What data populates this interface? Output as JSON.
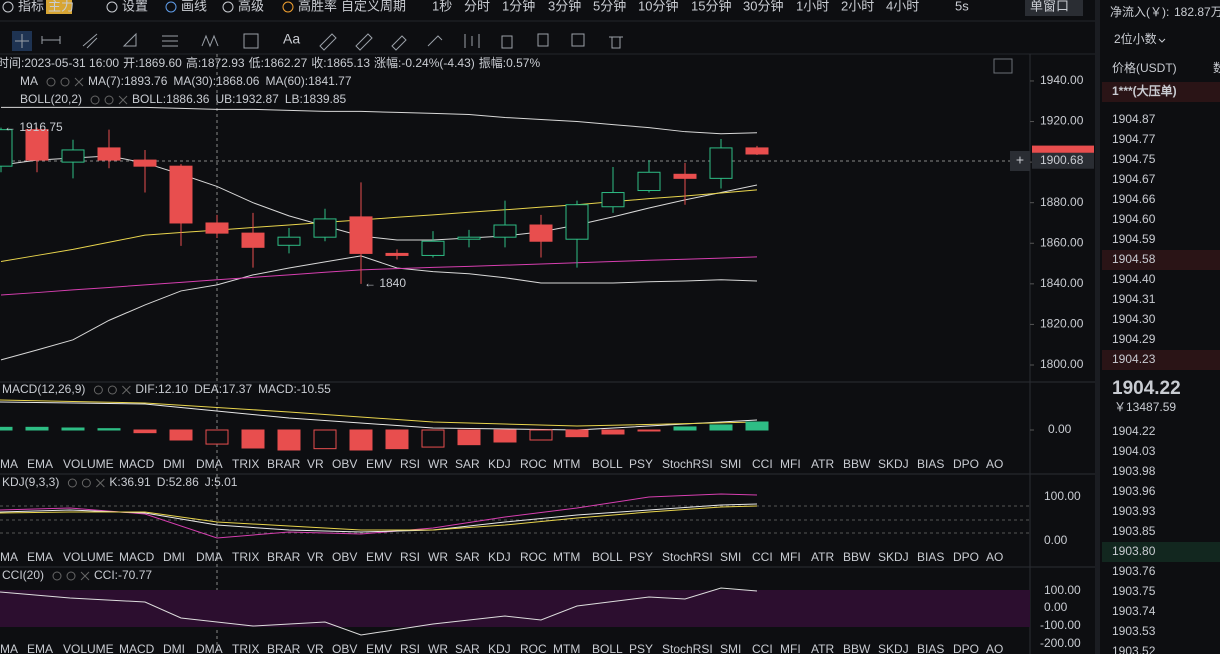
{
  "toolbar": {
    "items": [
      "指标",
      "主力",
      "设置",
      "画线",
      "高级",
      "高胜率",
      "自定义周期",
      "1秒",
      "分时",
      "1分钟",
      "3分钟",
      "5分钟",
      "10分钟",
      "15分钟",
      "30分钟",
      "1小时",
      "2小时",
      "4小时",
      "5s",
      "单窗口"
    ]
  },
  "info": {
    "time": "时间:2023-05-31 16:00",
    "fields": [
      [
        "开:",
        "1869.60"
      ],
      [
        "高:",
        "1872.93"
      ],
      [
        "低:",
        "1862.27"
      ],
      [
        "收:",
        "1865.13"
      ],
      [
        "涨幅:",
        "-0.24%(-4.43)"
      ],
      [
        "振幅:",
        "0.57%"
      ]
    ]
  },
  "ma": {
    "name": "MA",
    "items": [
      "MA(7):1893.76",
      "MA(30):1868.06",
      "MA(60):1841.77"
    ]
  },
  "boll": {
    "name": "BOLL(20,2)",
    "items": [
      "BOLL:1886.36",
      "UB:1932.87",
      "LB:1839.85"
    ]
  },
  "annotations": [
    "← 1916.75",
    "← 1840"
  ],
  "price_chart": {
    "type": "candlestick",
    "open": [
      1898,
      1916,
      1900,
      1907,
      1901,
      1898,
      1870,
      1865,
      1859,
      1863,
      1873,
      1855,
      1854,
      1862,
      1863,
      1869,
      1862,
      1878,
      1886,
      1894,
      1892,
      1907
    ],
    "high": [
      1917,
      1917,
      1911,
      1916,
      1906,
      1899,
      1874,
      1875,
      1867.5,
      1877,
      1890,
      1857,
      1866,
      1866.6,
      1881,
      1874,
      1881,
      1897.6,
      1901,
      1899.6,
      1911.4,
      1908
    ],
    "low": [
      1895,
      1895,
      1892,
      1897,
      1885,
      1858.7,
      1862.6,
      1848,
      1855,
      1861,
      1840,
      1852,
      1853,
      1858,
      1858,
      1853,
      1848,
      1875,
      1885,
      1879,
      1887,
      1903.5
    ],
    "close": [
      1916,
      1901,
      1906,
      1901,
      1898,
      1870,
      1865,
      1858,
      1863,
      1872,
      1855,
      1854,
      1861,
      1863,
      1869,
      1861,
      1879,
      1885,
      1895,
      1892,
      1907,
      1904
    ],
    "lines": [
      {
        "name": "UB",
        "color": "#d8d8d8",
        "values": [
          1927,
          1927,
          1927,
          1927,
          1927,
          1926.5,
          1926,
          1926,
          1925.5,
          1925,
          1925,
          1924.5,
          1924,
          1923.5,
          1922,
          1921,
          1920,
          1918.5,
          1917,
          1915,
          1914,
          1914.5
        ]
      },
      {
        "name": "BOLL",
        "color": "#d8d8d8",
        "values": [
          1898.6,
          1901,
          1902,
          1903,
          1899.6,
          1894,
          1888,
          1880,
          1873.5,
          1868.5,
          1863.6,
          1861.6,
          1861.6,
          1862.6,
          1863.6,
          1865.6,
          1869,
          1873,
          1877.4,
          1881.4,
          1885,
          1888.7
        ]
      },
      {
        "name": "LB",
        "color": "#d8d8d8",
        "values": [
          1802.5,
          1807.4,
          1812.4,
          1822,
          1829.6,
          1836.5,
          1839.5,
          1844.4,
          1847.8,
          1850.8,
          1853.8,
          1847.8,
          1846,
          1845,
          1843,
          1840.4,
          1840.4,
          1840.4,
          1841,
          1841.4,
          1842,
          1841.4
        ]
      },
      {
        "name": "MA(30)",
        "color": "#e8d44d",
        "values": [
          1851,
          1854,
          1857,
          1860.5,
          1864,
          1865.3,
          1866.5,
          1867.8,
          1869,
          1870.3,
          1871.5,
          1872.8,
          1874,
          1875.3,
          1876.5,
          1877.8,
          1879,
          1880.5,
          1882,
          1883.3,
          1884.8,
          1886.3
        ]
      },
      {
        "name": "MA(60)",
        "color": "#d63fb0",
        "values": [
          1834.5,
          1835.7,
          1837,
          1838.2,
          1839.5,
          1840.7,
          1842,
          1843.2,
          1844.4,
          1845.7,
          1846.9,
          1847.5,
          1848.1,
          1848.6,
          1849.2,
          1849.8,
          1850.4,
          1851,
          1851.6,
          1852.1,
          1852.7,
          1853.3
        ]
      }
    ],
    "ylim": [
      1792.6,
      1952.8
    ],
    "yticks": [
      {
        "value": 1940,
        "label": "1940.00"
      },
      {
        "value": 1920,
        "label": "1920.00"
      },
      {
        "value": 1900,
        "label": "1900.00"
      },
      {
        "value": 1880,
        "label": "1880.00"
      },
      {
        "value": 1860,
        "label": "1860.00"
      },
      {
        "value": 1840,
        "label": "1840.00"
      },
      {
        "value": 1820,
        "label": "1820.00"
      },
      {
        "value": 1800,
        "label": "1800.00"
      }
    ],
    "crosshair": {
      "value": 1900.68,
      "label": "1900.68"
    }
  },
  "macd": {
    "name": "MACD(12,26,9)",
    "items": [
      "DIF:12.10",
      "DEA:17.37",
      "MACD:-10.55"
    ],
    "values": [
      2,
      2,
      1.5,
      1,
      -2,
      -7.5,
      -10.55,
      -13.5,
      -15,
      -14,
      -15,
      -14,
      -12.8,
      -11,
      -9,
      -7.5,
      -5,
      -3,
      -0.5,
      2.3,
      3.8,
      6
    ],
    "ylim": [
      -18.75,
      24
    ],
    "yticks": [
      {
        "value": 0,
        "label": "0.00"
      }
    ]
  },
  "tabs": [
    "MA",
    "EMA",
    "VOLUME",
    "MACD",
    "DMI",
    "DMA",
    "TRIX",
    "BRAR",
    "VR",
    "OBV",
    "EMV",
    "RSI",
    "WR",
    "SAR",
    "KDJ",
    "ROC",
    "MTM",
    "BOLL",
    "PSY",
    "StochRSI",
    "SMI",
    "CCI",
    "MFI",
    "ATR",
    "BBW",
    "SKDJ",
    "BIAS",
    "DPO",
    "AO"
  ],
  "kdj": {
    "name": "KDJ(9,3,3)",
    "items": [
      "K:36.91",
      "D:52.86",
      "J:5.01"
    ],
    "axis": [
      "100.00",
      "0.00"
    ]
  },
  "cci": {
    "name": "CCI(20)",
    "items": [
      "CCI:-70.77"
    ],
    "axis": [
      "100.00",
      "0.00",
      "-100.00",
      "-200.00"
    ]
  },
  "book": {
    "inflow_label": "净流入(￥):",
    "inflow": "182.87万",
    "decimals": "2位小数",
    "price_header": "价格(USDT)",
    "qty_header": "数",
    "big_order": "1***(大压单)",
    "asks": [
      "1904.87",
      "1904.77",
      "1904.75",
      "1904.67",
      "1904.66",
      "1904.60",
      "1904.59",
      "1904.58",
      "1904.40",
      "1904.31",
      "1904.30",
      "1904.29",
      "1904.23"
    ],
    "last": "1904.22",
    "last_cny": "￥13487.59",
    "bids": [
      "1904.22",
      "1904.03",
      "1903.98",
      "1903.96",
      "1903.93",
      "1903.85",
      "1903.80",
      "1903.76",
      "1903.75",
      "1903.74",
      "1903.53",
      "1903.52"
    ]
  }
}
